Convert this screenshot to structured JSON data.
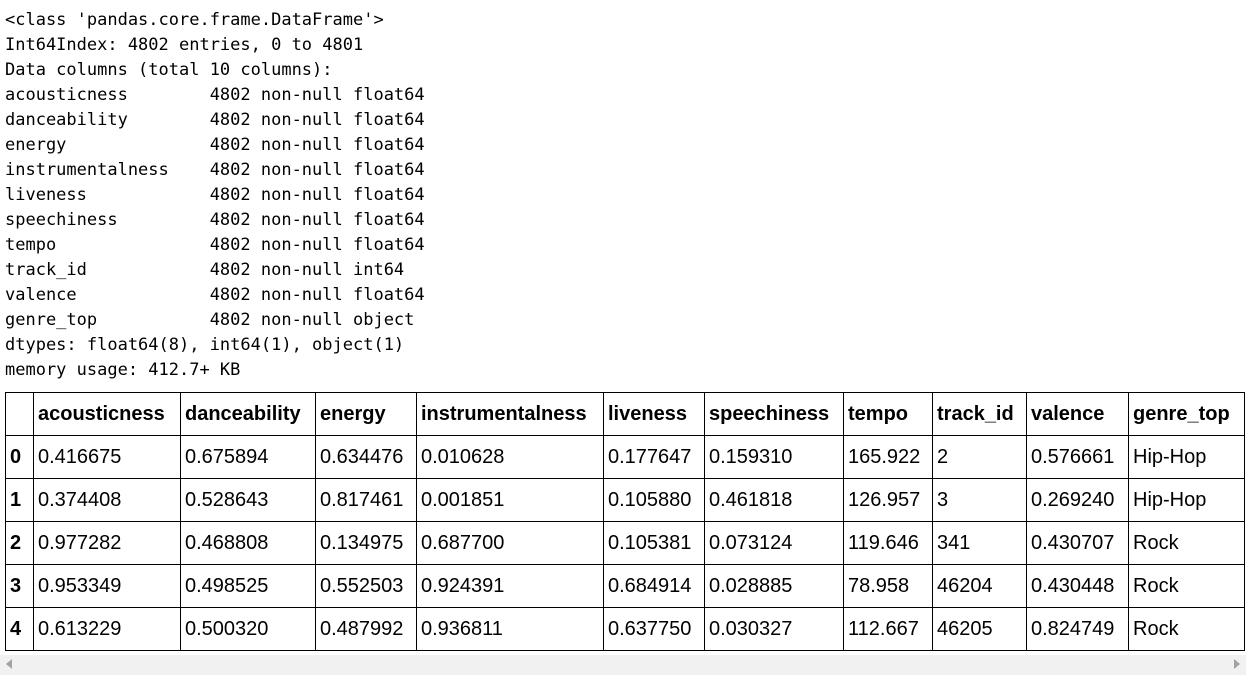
{
  "info": {
    "lines": [
      "<class 'pandas.core.frame.DataFrame'>",
      "Int64Index: 4802 entries, 0 to 4801",
      "Data columns (total 10 columns):",
      "acousticness        4802 non-null float64",
      "danceability        4802 non-null float64",
      "energy              4802 non-null float64",
      "instrumentalness    4802 non-null float64",
      "liveness            4802 non-null float64",
      "speechiness         4802 non-null float64",
      "tempo               4802 non-null float64",
      "track_id            4802 non-null int64",
      "valence             4802 non-null float64",
      "genre_top           4802 non-null object",
      "dtypes: float64(8), int64(1), object(1)",
      "memory usage: 412.7+ KB"
    ]
  },
  "table": {
    "columns": [
      "acousticness",
      "danceability",
      "energy",
      "instrumentalness",
      "liveness",
      "speechiness",
      "tempo",
      "track_id",
      "valence",
      "genre_top"
    ],
    "rows": [
      {
        "index": "0",
        "cells": [
          "0.416675",
          "0.675894",
          "0.634476",
          "0.010628",
          "0.177647",
          "0.159310",
          "165.922",
          "2",
          "0.576661",
          "Hip-Hop"
        ]
      },
      {
        "index": "1",
        "cells": [
          "0.374408",
          "0.528643",
          "0.817461",
          "0.001851",
          "0.105880",
          "0.461818",
          "126.957",
          "3",
          "0.269240",
          "Hip-Hop"
        ]
      },
      {
        "index": "2",
        "cells": [
          "0.977282",
          "0.468808",
          "0.134975",
          "0.687700",
          "0.105381",
          "0.073124",
          "119.646",
          "341",
          "0.430707",
          "Rock"
        ]
      },
      {
        "index": "3",
        "cells": [
          "0.953349",
          "0.498525",
          "0.552503",
          "0.924391",
          "0.684914",
          "0.028885",
          "78.958",
          "46204",
          "0.430448",
          "Rock"
        ]
      },
      {
        "index": "4",
        "cells": [
          "0.613229",
          "0.500320",
          "0.487992",
          "0.936811",
          "0.637750",
          "0.030327",
          "112.667",
          "46205",
          "0.824749",
          "Rock"
        ]
      }
    ]
  },
  "scrollbar": {
    "left_icon": "chevron-left-icon",
    "right_icon": "chevron-right-icon"
  }
}
